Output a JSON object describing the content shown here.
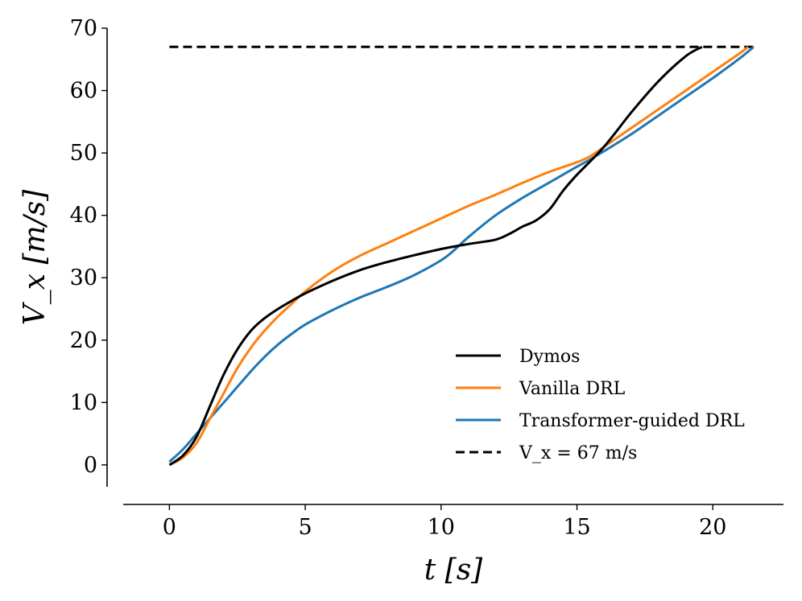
{
  "chart_data": {
    "type": "line",
    "title": "",
    "xlabel": "t [s]",
    "ylabel": "V_x [m/s]",
    "xlim": [
      -1.7,
      22.6
    ],
    "ylim": [
      -3.5,
      70
    ],
    "xticks": [
      0,
      5,
      10,
      15,
      20
    ],
    "yticks": [
      0,
      10,
      20,
      30,
      40,
      50,
      60,
      70
    ],
    "xtick_labels": [
      "0",
      "5",
      "10",
      "15",
      "20"
    ],
    "ytick_labels": [
      "0",
      "10",
      "20",
      "30",
      "40",
      "50",
      "60",
      "70"
    ],
    "grid": false,
    "legend_position": "lower right",
    "series": [
      {
        "name": "Dymos",
        "color": "#000000",
        "dash": "solid",
        "x": [
          0,
          0.5,
          1.0,
          1.5,
          2.0,
          2.5,
          3.0,
          3.5,
          4.0,
          4.5,
          5.0,
          6.0,
          7.0,
          8.0,
          9.0,
          10.0,
          11.0,
          12.0,
          12.5,
          13.0,
          13.5,
          14.0,
          14.5,
          15.0,
          16.0,
          17.0,
          18.0,
          19.0,
          19.6
        ],
        "y": [
          0,
          1.5,
          4.5,
          9.5,
          14.5,
          18.5,
          21.5,
          23.5,
          25.0,
          26.3,
          27.5,
          29.5,
          31.2,
          32.5,
          33.6,
          34.6,
          35.4,
          36.1,
          37.0,
          38.2,
          39.2,
          41.0,
          44.0,
          46.5,
          51.0,
          56.5,
          61.5,
          65.5,
          67
        ]
      },
      {
        "name": "Vanilla DRL",
        "color": "#ff7f0e",
        "dash": "solid",
        "x": [
          0,
          0.5,
          1.0,
          1.5,
          2.0,
          2.5,
          3.0,
          3.5,
          4.0,
          4.5,
          5.0,
          6.0,
          7.0,
          8.0,
          9.0,
          10.0,
          11.0,
          12.0,
          13.0,
          14.0,
          15.0,
          15.5,
          16.0,
          17.0,
          18.0,
          19.0,
          20.0,
          21.0,
          21.3
        ],
        "y": [
          0,
          1.2,
          3.5,
          7.5,
          11.5,
          15.5,
          18.8,
          21.5,
          23.8,
          25.8,
          27.8,
          31.0,
          33.5,
          35.5,
          37.5,
          39.5,
          41.5,
          43.3,
          45.2,
          47.0,
          48.5,
          49.5,
          51.0,
          54.0,
          57.0,
          60.0,
          63.0,
          66.0,
          67
        ]
      },
      {
        "name": "Transformer-guided DRL",
        "color": "#1f77b4",
        "dash": "solid",
        "x": [
          0,
          0.5,
          1.0,
          1.5,
          2.0,
          2.5,
          3.0,
          3.5,
          4.0,
          4.5,
          5.0,
          6.0,
          7.0,
          8.0,
          9.0,
          10.0,
          10.5,
          11.0,
          12.0,
          13.0,
          14.0,
          15.0,
          15.5,
          16.0,
          17.0,
          18.0,
          19.0,
          20.0,
          21.0,
          21.5
        ],
        "y": [
          0.5,
          2.5,
          5.0,
          7.5,
          10.0,
          12.5,
          15.0,
          17.3,
          19.3,
          21.0,
          22.5,
          24.8,
          26.8,
          28.5,
          30.4,
          32.8,
          34.5,
          36.5,
          40.0,
          42.8,
          45.3,
          47.8,
          49.0,
          50.3,
          53.0,
          56.0,
          59.0,
          62.0,
          65.2,
          67
        ]
      },
      {
        "name": "V_x = 67 m/s",
        "color": "#000000",
        "dash": "dashed",
        "x": [
          0,
          21.5
        ],
        "y": [
          67,
          67
        ]
      }
    ]
  }
}
